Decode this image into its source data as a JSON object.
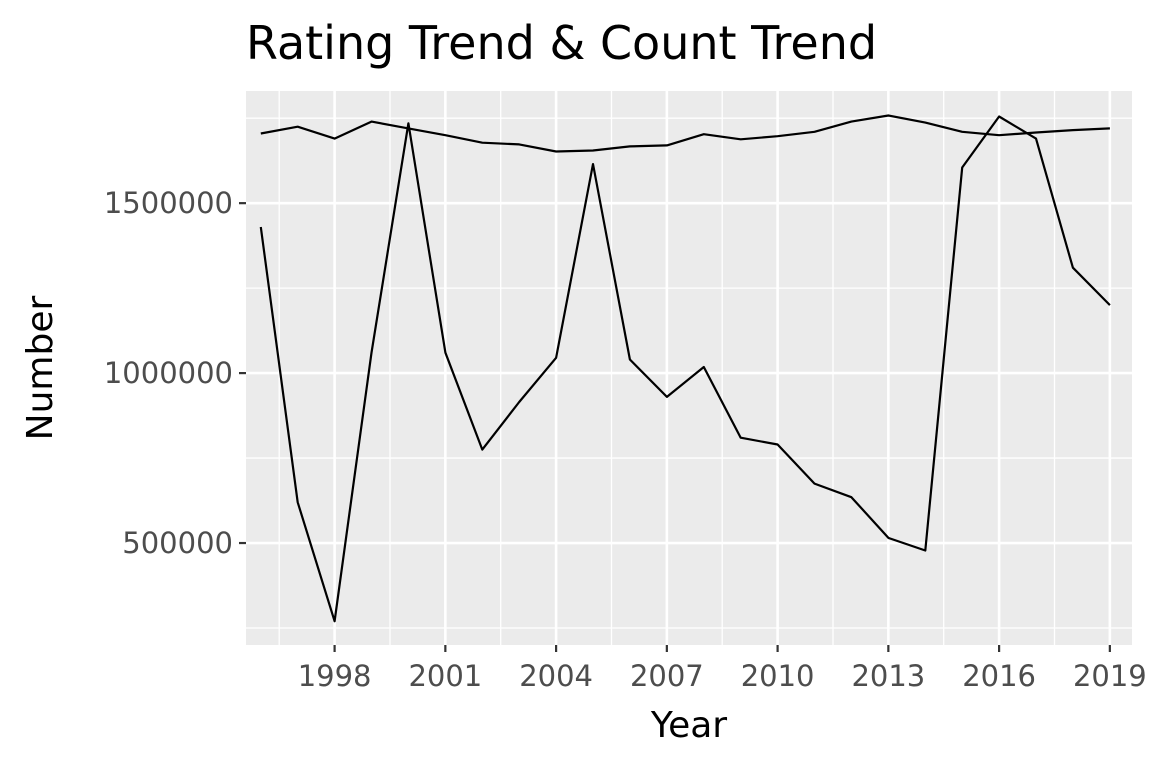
{
  "chart_data": {
    "type": "line",
    "title": "Rating Trend & Count Trend",
    "xlabel": "Year",
    "ylabel": "Number",
    "x": [
      1996,
      1997,
      1998,
      1999,
      2000,
      2001,
      2002,
      2003,
      2004,
      2005,
      2006,
      2007,
      2008,
      2009,
      2010,
      2011,
      2012,
      2013,
      2014,
      2015,
      2016,
      2017,
      2018,
      2019
    ],
    "xticks": [
      1998,
      2001,
      2004,
      2007,
      2010,
      2013,
      2016,
      2019
    ],
    "xtick_labels": [
      "1998",
      "2001",
      "2004",
      "2007",
      "2010",
      "2013",
      "2016",
      "2019"
    ],
    "yticks": [
      500000,
      1000000,
      1500000
    ],
    "ytick_labels": [
      "500000",
      "1000000",
      "1500000"
    ],
    "xlim": [
      1995.6,
      2019.6
    ],
    "ylim": [
      200000,
      1830000
    ],
    "grid": true,
    "series": [
      {
        "values": [
          1705000,
          1725000,
          1690000,
          1740000,
          1720000,
          1700000,
          1678000,
          1673000,
          1652000,
          1655000,
          1667000,
          1670000,
          1703000,
          1688000,
          1697000,
          1710000,
          1740000,
          1758000,
          1737000,
          1710000,
          1700000,
          1708000,
          1715000,
          1720000
        ]
      },
      {
        "values": [
          1430000,
          620000,
          270000,
          1060000,
          1735000,
          1060000,
          775000,
          915000,
          1045000,
          1615000,
          1040000,
          930000,
          1018000,
          810000,
          790000,
          675000,
          635000,
          515000,
          478000,
          1605000,
          1755000,
          1690000,
          1310000,
          1200000
        ]
      }
    ]
  }
}
